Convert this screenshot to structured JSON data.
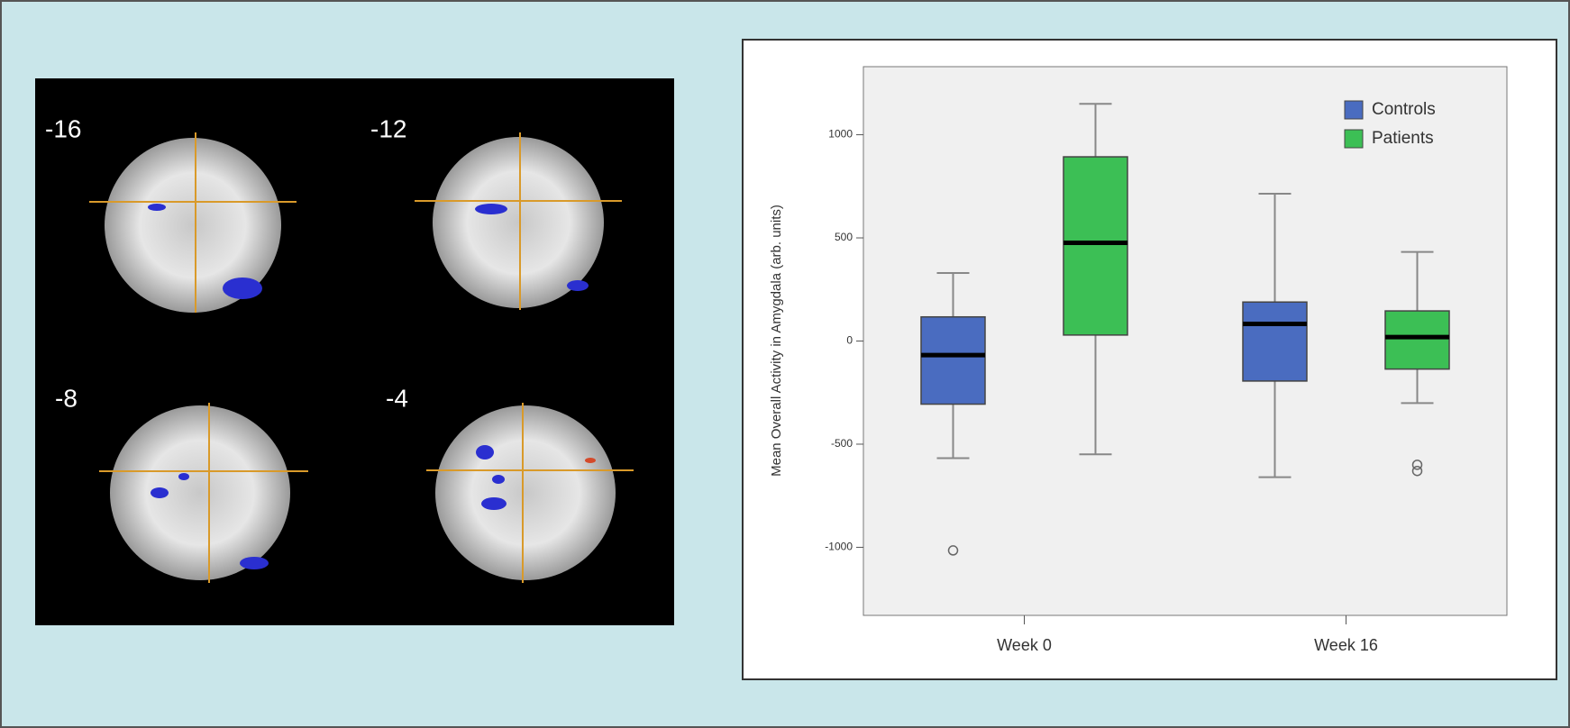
{
  "figure": {
    "slice_labels": [
      "-16",
      "-12",
      "-8",
      "-4"
    ]
  },
  "chart_data": {
    "type": "box",
    "y_label": "Mean Overall Activity in Amygdala (arb. units)",
    "categories": [
      "Week 0",
      "Week 16"
    ],
    "series": [
      {
        "name": "Controls",
        "color": "#4a6cc0",
        "min": [
          -568,
          -660
        ],
        "q1": [
          -306,
          -194
        ],
        "median": [
          -68,
          83
        ],
        "q3": [
          117,
          189
        ],
        "max": [
          330,
          714
        ],
        "outliers": [
          [
            -1015
          ],
          []
        ]
      },
      {
        "name": "Patients",
        "color": "#3cbf55",
        "min": [
          -549,
          -301
        ],
        "q1": [
          29,
          -136
        ],
        "median": [
          476,
          19
        ],
        "q3": [
          893,
          146
        ],
        "max": [
          1150,
          432
        ],
        "outliers": [
          [],
          [
            -600,
            -630
          ]
        ]
      }
    ],
    "ylim": [
      -1330,
      1330
    ],
    "yticks": [
      -1000,
      -500,
      0,
      500,
      1000
    ],
    "grid": false,
    "legend": "upper right"
  }
}
